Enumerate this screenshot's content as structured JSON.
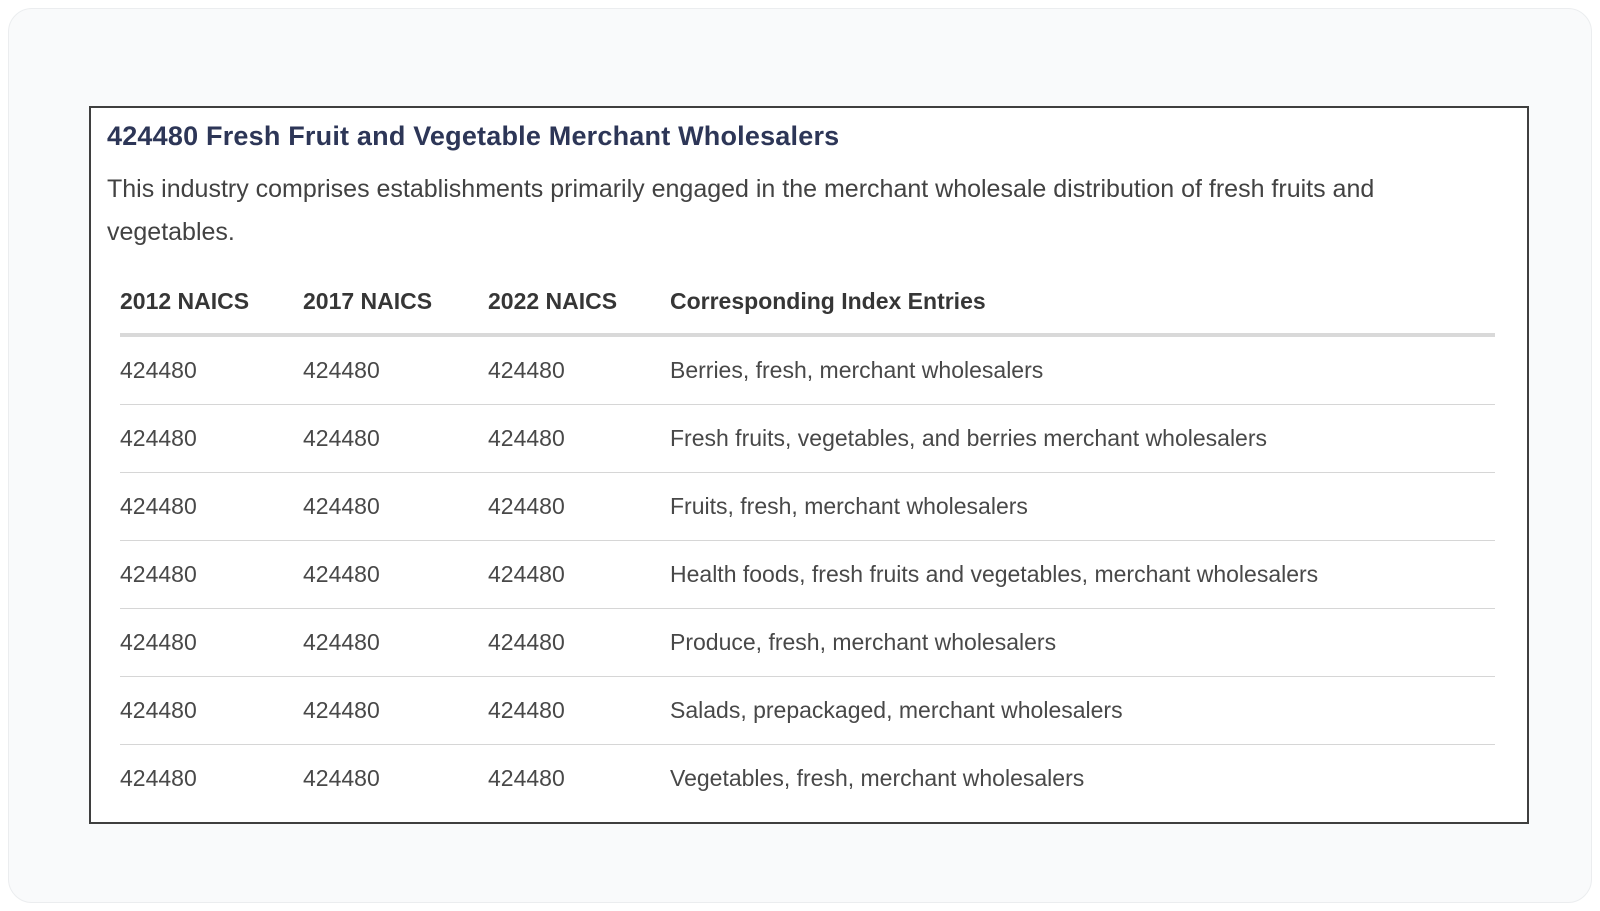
{
  "page": {
    "title": "424480 Fresh Fruit and Vegetable Merchant Wholesalers",
    "description": "This industry comprises establishments primarily engaged in the merchant wholesale distribution of fresh fruits and vegetables."
  },
  "table": {
    "headers": [
      "2012 NAICS",
      "2017 NAICS",
      "2022 NAICS",
      "Corresponding Index Entries"
    ],
    "rows": [
      [
        "424480",
        "424480",
        "424480",
        "Berries, fresh, merchant wholesalers"
      ],
      [
        "424480",
        "424480",
        "424480",
        "Fresh fruits, vegetables, and berries merchant wholesalers"
      ],
      [
        "424480",
        "424480",
        "424480",
        "Fruits, fresh, merchant wholesalers"
      ],
      [
        "424480",
        "424480",
        "424480",
        "Health foods, fresh fruits and vegetables, merchant wholesalers"
      ],
      [
        "424480",
        "424480",
        "424480",
        "Produce, fresh, merchant wholesalers"
      ],
      [
        "424480",
        "424480",
        "424480",
        "Salads, prepackaged, merchant wholesalers"
      ],
      [
        "424480",
        "424480",
        "424480",
        "Vegetables, fresh, merchant wholesalers"
      ]
    ]
  },
  "colors": {
    "title_text": "#2d3657",
    "body_text": "#424242",
    "header_text": "#363636",
    "cell_text": "#484848",
    "thick_divider": "#d9d9d9",
    "thin_divider": "#d6d6d6",
    "box_border": "#3f3f3f",
    "card_background": "#f9fafb",
    "page_background": "#ffffff"
  }
}
